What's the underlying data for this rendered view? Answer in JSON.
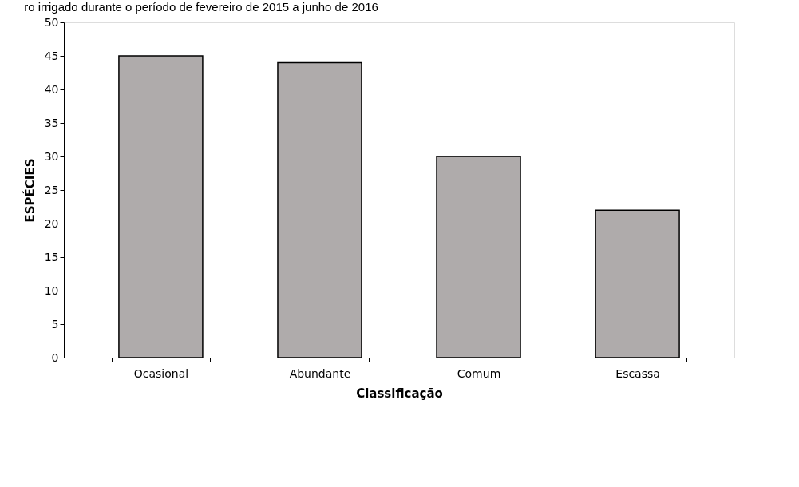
{
  "chart_data": {
    "type": "bar",
    "title": "ro irrigado durante o período de fevereiro de 2015 a junho de 2016",
    "xlabel": "Classificação",
    "ylabel": "ESPÉCIES",
    "categories": [
      "Ocasional",
      "Abundante",
      "Comum",
      "Escassa"
    ],
    "values": [
      45,
      44,
      30,
      22
    ],
    "color": "#afabab",
    "ylim": [
      0,
      50
    ],
    "yticks": [
      0,
      5,
      10,
      15,
      20,
      25,
      30,
      35,
      40,
      45,
      50
    ],
    "grid": false
  }
}
